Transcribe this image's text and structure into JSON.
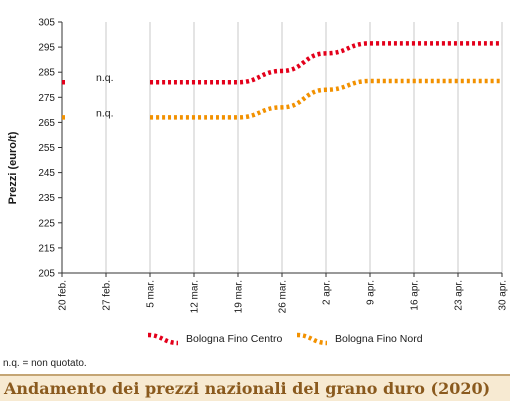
{
  "title": "Andamento dei prezzi nazionali del grano duro (2020)",
  "footnote": "n.q. = non quotato.",
  "chart_data": {
    "type": "line",
    "title": "Andamento dei prezzi nazionali del grano duro (2020)",
    "ylabel": "Prezzi (euro/t)",
    "xlabel": "",
    "categories": [
      "20 feb.",
      "27 feb.",
      "5 mar.",
      "12 mar.",
      "19 mar.",
      "26 mar.",
      "2 apr.",
      "9 apr.",
      "16 apr.",
      "23 apr.",
      "30 apr."
    ],
    "yticks": [
      205,
      215,
      225,
      235,
      245,
      255,
      265,
      275,
      285,
      295,
      305
    ],
    "ylim": [
      205,
      305
    ],
    "grid": "vertical",
    "legend_position": "bottom",
    "annotations": [
      {
        "text": "n.q.",
        "series": "Bologna Fino Centro",
        "x": "27 feb."
      },
      {
        "text": "n.q.",
        "series": "Bologna Fino Nord",
        "x": "27 feb."
      }
    ],
    "series": [
      {
        "name": "Bologna Fino Centro",
        "color": "#e3001b",
        "values": [
          281,
          null,
          281,
          281,
          281,
          285.5,
          292.5,
          296.5,
          296.5,
          296.5,
          296.5
        ]
      },
      {
        "name": "Bologna Fino Nord",
        "color": "#f29100",
        "values": [
          267,
          null,
          267,
          267,
          267,
          271,
          278,
          281.5,
          281.5,
          281.5,
          281.5
        ]
      }
    ]
  }
}
